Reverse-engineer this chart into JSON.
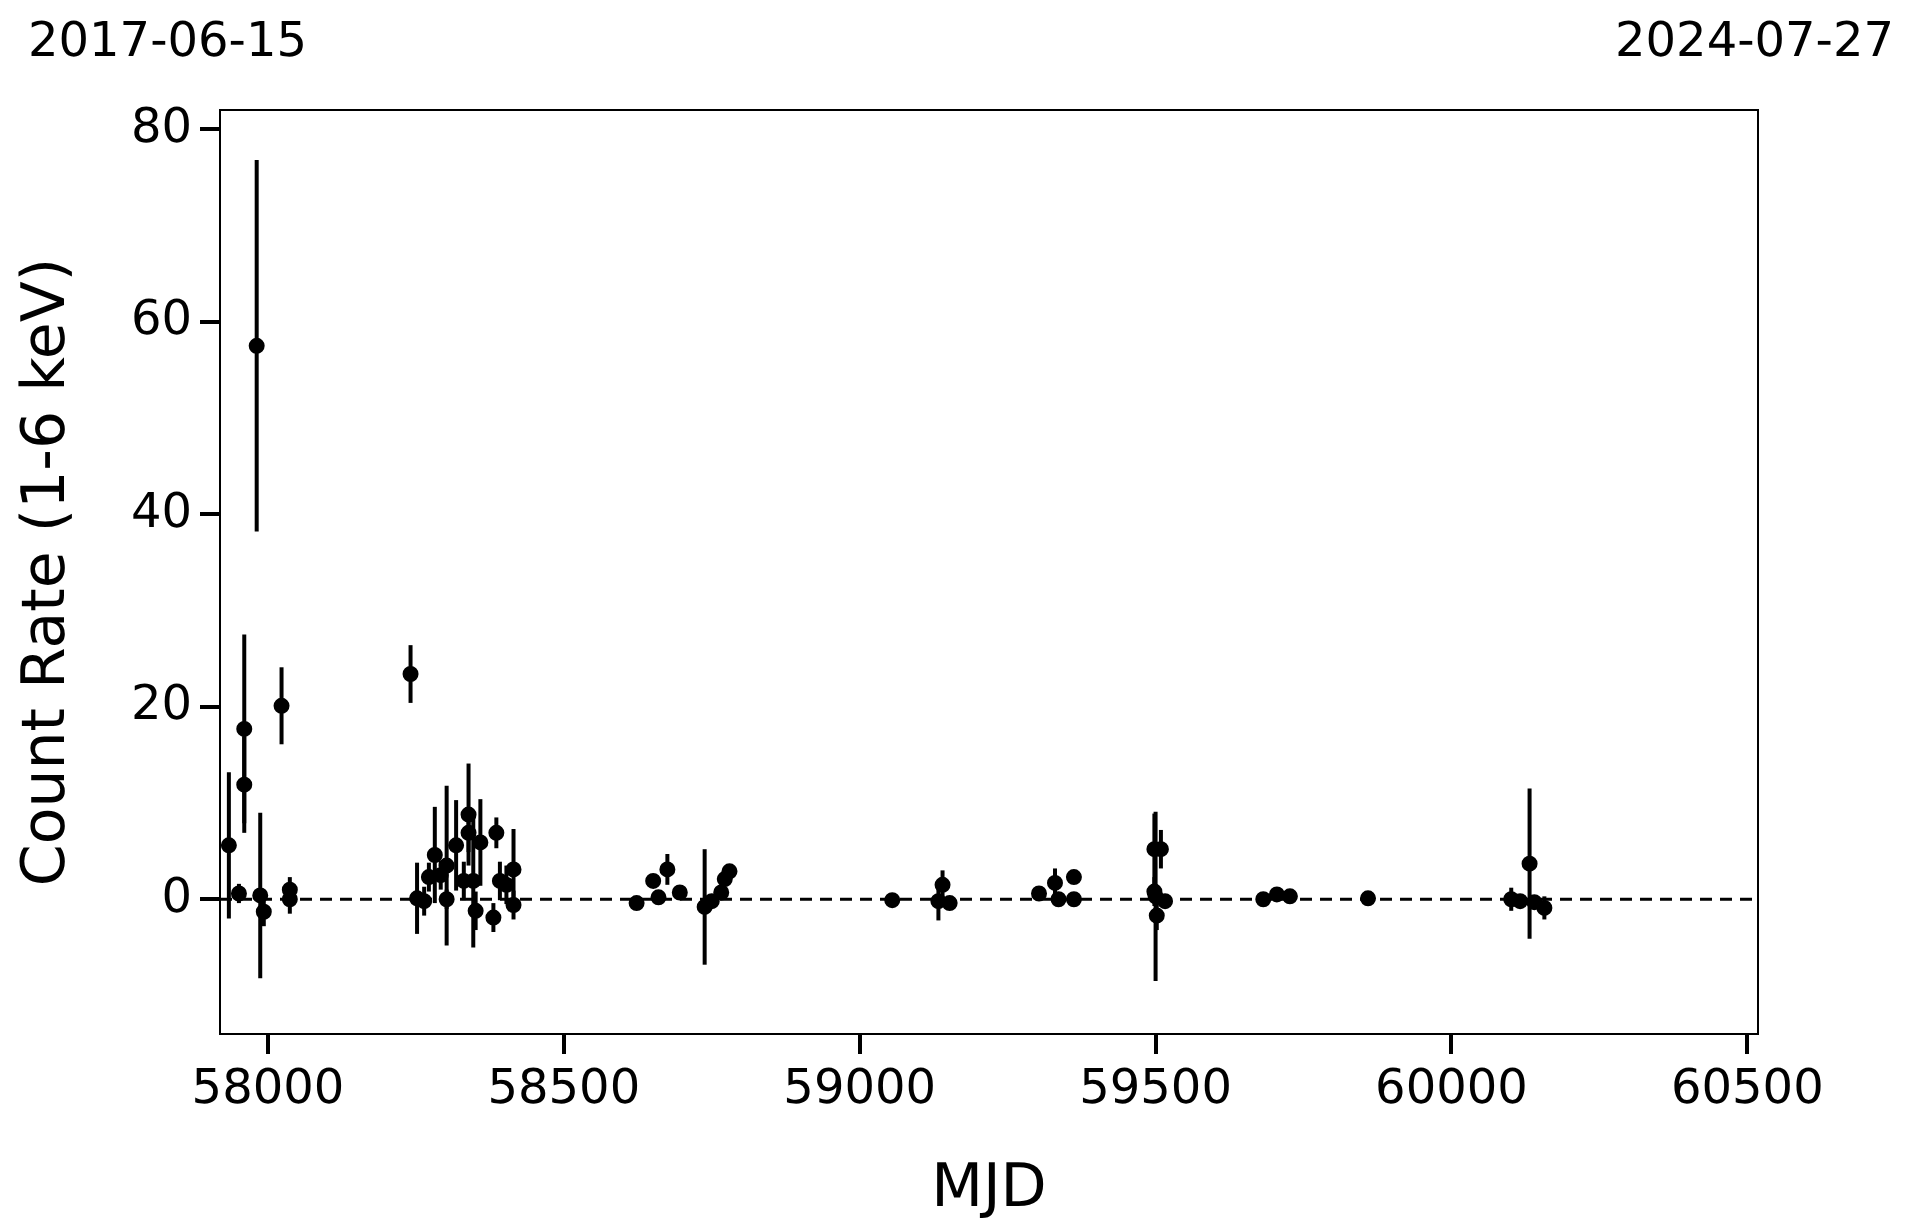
{
  "chart_data": {
    "type": "scatter",
    "xlabel": "MJD",
    "ylabel": "Count Rate (1-6 keV)",
    "xlim": [
      57919,
      60518
    ],
    "xticks": [
      58000,
      58500,
      59000,
      59500,
      60000,
      60500
    ],
    "annotations": [
      "2017-06-15",
      "2024-07-27"
    ],
    "ylim": [
      -14,
      82
    ],
    "yticks": [
      0,
      20,
      40,
      60,
      80
    ],
    "grid": false,
    "legend": false,
    "marker": "circle",
    "ref_lines": [
      {
        "axis": "y",
        "value": 0,
        "color": "#000000",
        "line_style": "dashed"
      }
    ],
    "series": [
      {
        "color": "#000000",
        "x": [
          57934,
          57951,
          57960,
          57960,
          57981,
          57987,
          57993,
          58023,
          58037,
          58037,
          58241,
          58252,
          58264,
          58272,
          58282,
          58292,
          58302,
          58302,
          58318,
          58331,
          58339,
          58339,
          58347,
          58351,
          58359,
          58381,
          58386,
          58392,
          58403,
          58415,
          58415,
          58623,
          58651,
          58660,
          58675,
          58696,
          58738,
          58750,
          58766,
          58772,
          58780,
          59055,
          59133,
          59140,
          59152,
          59303,
          59330,
          59336,
          59362,
          59362,
          59498,
          59509,
          59498,
          59500,
          59502,
          59516,
          59682,
          59705,
          59727,
          59859,
          60101,
          60116,
          60132,
          60140,
          60157
        ],
        "values": [
          5.6,
          0.6,
          17.7,
          11.9,
          57.5,
          0.4,
          -1.3,
          20.1,
          1.0,
          0,
          23.4,
          0.1,
          -0.2,
          2.3,
          4.6,
          2.5,
          3.5,
          0,
          5.6,
          1.9,
          8.8,
          6.9,
          1.9,
          -1.2,
          5.9,
          -1.9,
          6.9,
          1.9,
          1.5,
          3.1,
          -0.6,
          -0.4,
          1.9,
          0.2,
          3.1,
          0.7,
          -0.8,
          -0.2,
          0.7,
          2.1,
          2.9,
          -0.1,
          -0.2,
          1.5,
          -0.4,
          0.6,
          1.7,
          0,
          2.3,
          0,
          5.2,
          5.2,
          0.8,
          0.3,
          -1.7,
          -0.2,
          0,
          0.5,
          0.3,
          0.1,
          0,
          -0.2,
          3.7,
          -0.3,
          -0.9
        ],
        "errors": [
          7.6,
          1,
          9.8,
          5,
          19.3,
          8.6,
          1.5,
          4,
          1.3,
          1.5,
          3,
          3.7,
          1.5,
          1.5,
          5,
          1.5,
          8.3,
          1,
          4.7,
          2,
          5.3,
          2,
          6.9,
          2,
          4.5,
          1.5,
          1.6,
          2,
          2,
          4.2,
          1.5,
          0.5,
          0.5,
          0.5,
          1.6,
          0.6,
          6,
          0.5,
          0.5,
          0.5,
          0.5,
          0.5,
          2,
          1.5,
          0.5,
          0.5,
          1.5,
          0.5,
          0.5,
          0.5,
          3.7,
          2,
          1.5,
          8.8,
          1.5,
          0.5,
          0.5,
          0.5,
          0.5,
          0.5,
          1.2,
          0.5,
          7.8,
          0.5,
          1.2
        ]
      }
    ]
  }
}
